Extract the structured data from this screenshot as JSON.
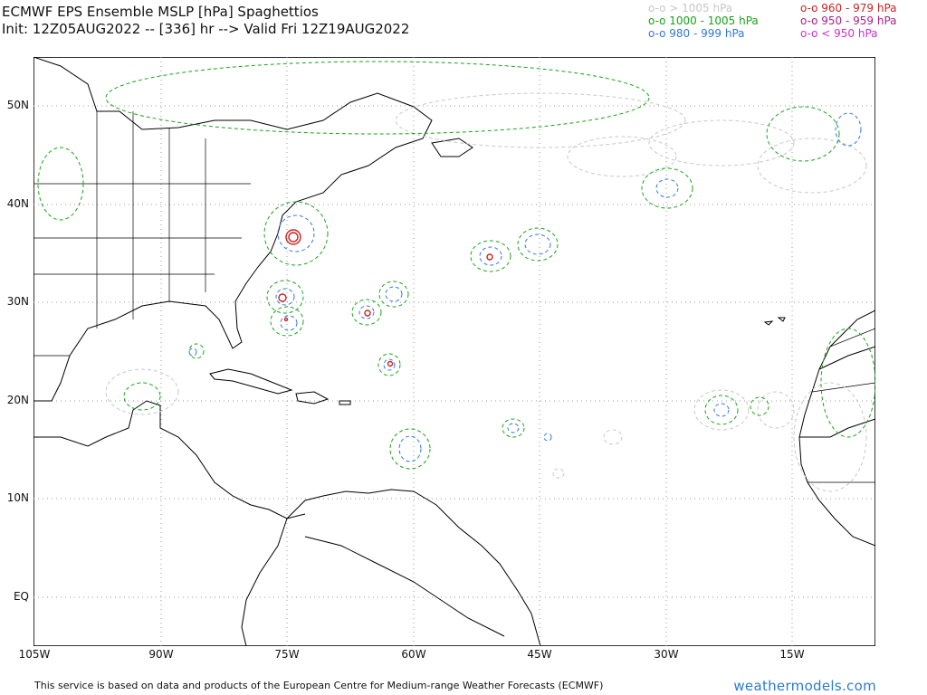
{
  "header": {
    "title_line1": "ECMWF EPS Ensemble MSLP [hPa] Spaghettios",
    "title_line2": "Init: 12Z05AUG2022 -- [336] hr --> Valid Fri 12Z19AUG2022"
  },
  "legend": [
    {
      "label": "o-o > 1005 hPa",
      "color": "#c8c8c8"
    },
    {
      "label": "o-o 1000 - 1005 hPa",
      "color": "#1aa31a"
    },
    {
      "label": "o-o 980 - 999 hPa",
      "color": "#3377dd"
    },
    {
      "label": "o-o 960 - 979 hPa",
      "color": "#cc2222"
    },
    {
      "label": "o-o 950 - 959 hPa",
      "color": "#aa2288"
    },
    {
      "label": "o-o < 950 hPa",
      "color": "#cc33cc"
    }
  ],
  "axes": {
    "lat_labels": [
      "50N",
      "40N",
      "30N",
      "20N",
      "10N",
      "EQ"
    ],
    "lon_labels": [
      "105W",
      "90W",
      "75W",
      "60W",
      "45W",
      "30W",
      "15W"
    ]
  },
  "footer": {
    "credit": "This service is based on data and products of the European Centre for Medium-range Weather Forecasts (ECMWF)",
    "brand": "weathermodels.com"
  }
}
